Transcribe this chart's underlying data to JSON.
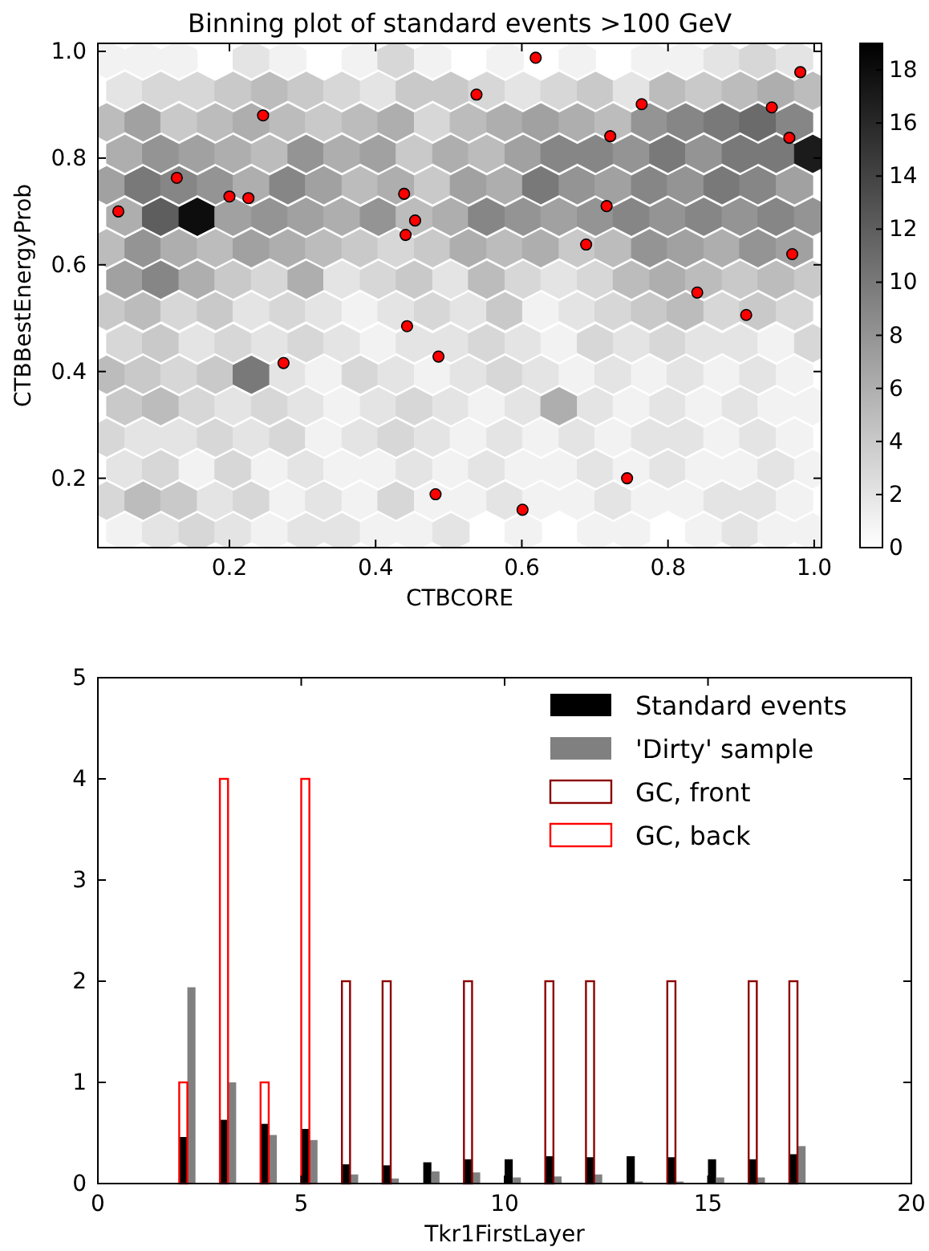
{
  "chart_data": [
    {
      "type": "scatter",
      "title": "Binning plot of standard events >100 GeV",
      "xlabel": "CTBCORE",
      "ylabel": "CTBBestEnergyProb",
      "xlim": [
        0.02,
        1.01
      ],
      "ylim": [
        0.07,
        1.015
      ],
      "xticks": [
        0.2,
        0.4,
        0.6,
        0.8,
        {
          "value": 1,
          "label": "1.0"
        }
      ],
      "yticks": [
        0.2,
        0.4,
        0.6,
        0.8,
        {
          "value": 1,
          "label": "1.0"
        }
      ],
      "clim": [
        0,
        19
      ],
      "cticks": [
        0,
        2,
        4,
        6,
        8,
        10,
        12,
        14,
        16,
        18
      ],
      "marker": "circle",
      "series": [
        {
          "x": [
            0.032,
            0.082,
            0.131,
            0.23,
            0.28,
            0.379,
            0.428,
            0.478,
            0.577,
            0.676,
            0.775,
            0.824,
            0.874,
            0.923,
            0.973
          ],
          "values": [
            0.985,
            0.985,
            0.985,
            0.985,
            0.985,
            0.985,
            0.985,
            0.985,
            0.985,
            0.985,
            0.985,
            0.985,
            0.985,
            0.985,
            0.985
          ],
          "cvalues": [
            1,
            1,
            1,
            2,
            1,
            1,
            3,
            1,
            1,
            1,
            1,
            1,
            2,
            3,
            2
          ],
          "colors": [
            "#f2f2f2",
            "#f2f2f2",
            "#f2f2f2",
            "#e4e4e4",
            "#f2f2f2",
            "#f2f2f2",
            "#d7d7d7",
            "#f2f2f2",
            "#f2f2f2",
            "#f2f2f2",
            "#f2f2f2",
            "#f2f2f2",
            "#e4e4e4",
            "#d7d7d7",
            "#e4e4e4"
          ]
        },
        {
          "x": [
            0.057,
            0.106,
            0.156,
            0.205,
            0.255,
            0.305,
            0.354,
            0.404,
            0.453,
            0.503,
            0.552,
            0.602,
            0.651,
            0.701,
            0.75,
            0.8,
            0.849,
            0.899,
            0.948,
            0.998
          ],
          "values": [
            0.926,
            0.926,
            0.926,
            0.926,
            0.926,
            0.926,
            0.926,
            0.926,
            0.926,
            0.926,
            0.926,
            0.926,
            0.926,
            0.926,
            0.926,
            0.926,
            0.926,
            0.926,
            0.926,
            0.926
          ],
          "cvalues": [
            2,
            3,
            3,
            4,
            5,
            4,
            3,
            2,
            4,
            4,
            3,
            2,
            3,
            4,
            2,
            5,
            4,
            5,
            6,
            5
          ],
          "colors": [
            "#e4e4e4",
            "#d7d7d7",
            "#d7d7d7",
            "#c9c9c9",
            "#bcbcbc",
            "#c9c9c9",
            "#d7d7d7",
            "#e4e4e4",
            "#c9c9c9",
            "#c9c9c9",
            "#d7d7d7",
            "#e4e4e4",
            "#d7d7d7",
            "#c9c9c9",
            "#e4e4e4",
            "#bcbcbc",
            "#c9c9c9",
            "#bcbcbc",
            "#aeaeae",
            "#bcbcbc"
          ]
        },
        {
          "x": [
            0.032,
            0.082,
            0.131,
            0.181,
            0.23,
            0.28,
            0.329,
            0.379,
            0.428,
            0.478,
            0.527,
            0.577,
            0.626,
            0.676,
            0.725,
            0.775,
            0.824,
            0.874,
            0.923,
            0.973
          ],
          "values": [
            0.867,
            0.867,
            0.867,
            0.867,
            0.867,
            0.867,
            0.867,
            0.867,
            0.867,
            0.867,
            0.867,
            0.867,
            0.867,
            0.867,
            0.867,
            0.867,
            0.867,
            0.867,
            0.867,
            0.867
          ],
          "cvalues": [
            5,
            7,
            4,
            5,
            6,
            5,
            4,
            5,
            6,
            3,
            5,
            6,
            7,
            6,
            5,
            8,
            9,
            10,
            11,
            9
          ],
          "colors": [
            "#bcbcbc",
            "#a1a1a1",
            "#c9c9c9",
            "#bcbcbc",
            "#aeaeae",
            "#bcbcbc",
            "#c9c9c9",
            "#bcbcbc",
            "#aeaeae",
            "#d7d7d7",
            "#bcbcbc",
            "#aeaeae",
            "#a1a1a1",
            "#aeaeae",
            "#bcbcbc",
            "#949494",
            "#868686",
            "#797979",
            "#6b6b6b",
            "#868686"
          ]
        },
        {
          "x": [
            0.057,
            0.106,
            0.156,
            0.205,
            0.255,
            0.305,
            0.354,
            0.404,
            0.453,
            0.503,
            0.552,
            0.602,
            0.651,
            0.701,
            0.75,
            0.8,
            0.849,
            0.899,
            0.948,
            0.998
          ],
          "values": [
            0.808,
            0.808,
            0.808,
            0.808,
            0.808,
            0.808,
            0.808,
            0.808,
            0.808,
            0.808,
            0.808,
            0.808,
            0.808,
            0.808,
            0.808,
            0.808,
            0.808,
            0.808,
            0.808,
            0.808
          ],
          "cvalues": [
            6,
            8,
            7,
            6,
            5,
            8,
            6,
            7,
            4,
            6,
            5,
            7,
            9,
            9,
            8,
            10,
            8,
            10,
            10,
            17
          ],
          "colors": [
            "#aeaeae",
            "#949494",
            "#a1a1a1",
            "#aeaeae",
            "#bcbcbc",
            "#949494",
            "#aeaeae",
            "#a1a1a1",
            "#c9c9c9",
            "#aeaeae",
            "#bcbcbc",
            "#a1a1a1",
            "#868686",
            "#868686",
            "#949494",
            "#797979",
            "#949494",
            "#797979",
            "#797979",
            "#1b1b1b"
          ]
        },
        {
          "x": [
            0.032,
            0.082,
            0.131,
            0.181,
            0.23,
            0.28,
            0.329,
            0.379,
            0.428,
            0.478,
            0.527,
            0.577,
            0.626,
            0.676,
            0.725,
            0.775,
            0.824,
            0.874,
            0.923,
            0.973
          ],
          "values": [
            0.749,
            0.749,
            0.749,
            0.749,
            0.749,
            0.749,
            0.749,
            0.749,
            0.749,
            0.749,
            0.749,
            0.749,
            0.749,
            0.749,
            0.749,
            0.749,
            0.749,
            0.749,
            0.749,
            0.749
          ],
          "cvalues": [
            7,
            10,
            9,
            8,
            6,
            9,
            7,
            5,
            6,
            4,
            7,
            6,
            10,
            8,
            7,
            9,
            8,
            10,
            9,
            7
          ],
          "colors": [
            "#a1a1a1",
            "#797979",
            "#868686",
            "#949494",
            "#aeaeae",
            "#868686",
            "#a1a1a1",
            "#bcbcbc",
            "#aeaeae",
            "#c9c9c9",
            "#a1a1a1",
            "#aeaeae",
            "#797979",
            "#949494",
            "#a1a1a1",
            "#868686",
            "#949494",
            "#797979",
            "#868686",
            "#a1a1a1"
          ]
        },
        {
          "x": [
            0.057,
            0.106,
            0.156,
            0.205,
            0.255,
            0.305,
            0.354,
            0.404,
            0.453,
            0.503,
            0.552,
            0.602,
            0.651,
            0.701,
            0.75,
            0.8,
            0.849,
            0.899,
            0.948,
            0.998
          ],
          "values": [
            0.69,
            0.69,
            0.69,
            0.69,
            0.69,
            0.69,
            0.69,
            0.69,
            0.69,
            0.69,
            0.69,
            0.69,
            0.69,
            0.69,
            0.69,
            0.69,
            0.69,
            0.69,
            0.69,
            0.69
          ],
          "cvalues": [
            6,
            12,
            18,
            7,
            8,
            7,
            6,
            8,
            5,
            6,
            9,
            8,
            7,
            8,
            9,
            8,
            9,
            8,
            9,
            8
          ],
          "colors": [
            "#aeaeae",
            "#5e5e5e",
            "#0d0d0d",
            "#a1a1a1",
            "#949494",
            "#a1a1a1",
            "#aeaeae",
            "#949494",
            "#bcbcbc",
            "#aeaeae",
            "#868686",
            "#949494",
            "#a1a1a1",
            "#949494",
            "#868686",
            "#949494",
            "#868686",
            "#949494",
            "#868686",
            "#949494"
          ]
        },
        {
          "x": [
            0.032,
            0.082,
            0.131,
            0.181,
            0.23,
            0.28,
            0.329,
            0.379,
            0.428,
            0.478,
            0.527,
            0.577,
            0.626,
            0.676,
            0.725,
            0.775,
            0.824,
            0.874,
            0.923,
            0.973
          ],
          "values": [
            0.631,
            0.631,
            0.631,
            0.631,
            0.631,
            0.631,
            0.631,
            0.631,
            0.631,
            0.631,
            0.631,
            0.631,
            0.631,
            0.631,
            0.631,
            0.631,
            0.631,
            0.631,
            0.631,
            0.631
          ],
          "cvalues": [
            5,
            8,
            6,
            5,
            7,
            6,
            5,
            4,
            3,
            4,
            6,
            5,
            6,
            4,
            5,
            8,
            7,
            6,
            8,
            7
          ],
          "colors": [
            "#bcbcbc",
            "#949494",
            "#aeaeae",
            "#bcbcbc",
            "#a1a1a1",
            "#aeaeae",
            "#bcbcbc",
            "#c9c9c9",
            "#d7d7d7",
            "#c9c9c9",
            "#aeaeae",
            "#bcbcbc",
            "#aeaeae",
            "#c9c9c9",
            "#bcbcbc",
            "#949494",
            "#a1a1a1",
            "#aeaeae",
            "#949494",
            "#a1a1a1"
          ]
        },
        {
          "x": [
            0.057,
            0.106,
            0.156,
            0.205,
            0.255,
            0.305,
            0.354,
            0.404,
            0.453,
            0.503,
            0.552,
            0.602,
            0.651,
            0.701,
            0.75,
            0.8,
            0.849,
            0.899,
            0.948,
            0.998
          ],
          "values": [
            0.572,
            0.572,
            0.572,
            0.572,
            0.572,
            0.572,
            0.572,
            0.572,
            0.572,
            0.572,
            0.572,
            0.572,
            0.572,
            0.572,
            0.572,
            0.572,
            0.572,
            0.572,
            0.572,
            0.572
          ],
          "cvalues": [
            7,
            9,
            6,
            4,
            3,
            6,
            2,
            3,
            4,
            2,
            5,
            3,
            2,
            3,
            5,
            6,
            5,
            4,
            5,
            4
          ],
          "colors": [
            "#a1a1a1",
            "#868686",
            "#aeaeae",
            "#c9c9c9",
            "#d7d7d7",
            "#aeaeae",
            "#e4e4e4",
            "#d7d7d7",
            "#c9c9c9",
            "#e4e4e4",
            "#bcbcbc",
            "#d7d7d7",
            "#e4e4e4",
            "#d7d7d7",
            "#bcbcbc",
            "#aeaeae",
            "#bcbcbc",
            "#c9c9c9",
            "#bcbcbc",
            "#c9c9c9"
          ]
        },
        {
          "x": [
            0.032,
            0.082,
            0.131,
            0.181,
            0.23,
            0.28,
            0.329,
            0.379,
            0.428,
            0.478,
            0.527,
            0.577,
            0.626,
            0.676,
            0.725,
            0.775,
            0.824,
            0.874,
            0.923,
            0.973
          ],
          "values": [
            0.513,
            0.513,
            0.513,
            0.513,
            0.513,
            0.513,
            0.513,
            0.513,
            0.513,
            0.513,
            0.513,
            0.513,
            0.513,
            0.513,
            0.513,
            0.513,
            0.513,
            0.513,
            0.513,
            0.513
          ],
          "cvalues": [
            4,
            5,
            3,
            4,
            2,
            3,
            2,
            1,
            2,
            3,
            2,
            4,
            1,
            2,
            3,
            4,
            5,
            3,
            4,
            3
          ],
          "colors": [
            "#c9c9c9",
            "#bcbcbc",
            "#d7d7d7",
            "#c9c9c9",
            "#e4e4e4",
            "#d7d7d7",
            "#e4e4e4",
            "#f2f2f2",
            "#e4e4e4",
            "#d7d7d7",
            "#e4e4e4",
            "#c9c9c9",
            "#f2f2f2",
            "#e4e4e4",
            "#d7d7d7",
            "#c9c9c9",
            "#bcbcbc",
            "#d7d7d7",
            "#c9c9c9",
            "#d7d7d7"
          ]
        },
        {
          "x": [
            0.057,
            0.106,
            0.156,
            0.205,
            0.255,
            0.305,
            0.354,
            0.404,
            0.453,
            0.503,
            0.552,
            0.602,
            0.651,
            0.701,
            0.75,
            0.8,
            0.849,
            0.899,
            0.948,
            0.998
          ],
          "values": [
            0.453,
            0.453,
            0.453,
            0.453,
            0.453,
            0.453,
            0.453,
            0.453,
            0.453,
            0.453,
            0.453,
            0.453,
            0.453,
            0.453,
            0.453,
            0.453,
            0.453,
            0.453,
            0.453,
            0.453
          ],
          "cvalues": [
            3,
            4,
            2,
            3,
            2,
            3,
            2,
            1,
            2,
            2,
            3,
            2,
            1,
            3,
            2,
            3,
            2,
            2,
            1,
            3
          ],
          "colors": [
            "#d7d7d7",
            "#c9c9c9",
            "#e4e4e4",
            "#d7d7d7",
            "#e4e4e4",
            "#d7d7d7",
            "#e4e4e4",
            "#f2f2f2",
            "#e4e4e4",
            "#e4e4e4",
            "#d7d7d7",
            "#e4e4e4",
            "#f2f2f2",
            "#d7d7d7",
            "#e4e4e4",
            "#d7d7d7",
            "#e4e4e4",
            "#e4e4e4",
            "#f2f2f2",
            "#d7d7d7"
          ]
        },
        {
          "x": [
            0.032,
            0.082,
            0.131,
            0.181,
            0.23,
            0.28,
            0.329,
            0.379,
            0.428,
            0.478,
            0.527,
            0.577,
            0.626,
            0.676,
            0.725,
            0.775,
            0.824,
            0.874,
            0.923,
            0.973
          ],
          "values": [
            0.394,
            0.394,
            0.394,
            0.394,
            0.394,
            0.394,
            0.394,
            0.394,
            0.394,
            0.394,
            0.394,
            0.394,
            0.394,
            0.394,
            0.394,
            0.394,
            0.394,
            0.394,
            0.394,
            0.394
          ],
          "cvalues": [
            5,
            4,
            3,
            4,
            10,
            2,
            1,
            3,
            2,
            1,
            2,
            3,
            2,
            1,
            2,
            1,
            2,
            1,
            2,
            1
          ],
          "colors": [
            "#bcbcbc",
            "#c9c9c9",
            "#d7d7d7",
            "#c9c9c9",
            "#797979",
            "#e4e4e4",
            "#f2f2f2",
            "#d7d7d7",
            "#e4e4e4",
            "#f2f2f2",
            "#e4e4e4",
            "#d7d7d7",
            "#e4e4e4",
            "#f2f2f2",
            "#e4e4e4",
            "#f2f2f2",
            "#e4e4e4",
            "#f2f2f2",
            "#e4e4e4",
            "#f2f2f2"
          ]
        },
        {
          "x": [
            0.057,
            0.106,
            0.156,
            0.205,
            0.255,
            0.305,
            0.354,
            0.404,
            0.453,
            0.503,
            0.552,
            0.602,
            0.651,
            0.701,
            0.75,
            0.8,
            0.849,
            0.899,
            0.948,
            0.998
          ],
          "values": [
            0.335,
            0.335,
            0.335,
            0.335,
            0.335,
            0.335,
            0.335,
            0.335,
            0.335,
            0.335,
            0.335,
            0.335,
            0.335,
            0.335,
            0.335,
            0.335,
            0.335,
            0.335,
            0.335,
            0.335
          ],
          "cvalues": [
            4,
            5,
            3,
            2,
            3,
            2,
            1,
            2,
            3,
            2,
            1,
            2,
            6,
            2,
            1,
            2,
            1,
            2,
            1,
            1
          ],
          "colors": [
            "#c9c9c9",
            "#bcbcbc",
            "#d7d7d7",
            "#e4e4e4",
            "#d7d7d7",
            "#e4e4e4",
            "#f2f2f2",
            "#e4e4e4",
            "#d7d7d7",
            "#e4e4e4",
            "#f2f2f2",
            "#e4e4e4",
            "#aeaeae",
            "#e4e4e4",
            "#f2f2f2",
            "#e4e4e4",
            "#f2f2f2",
            "#e4e4e4",
            "#f2f2f2",
            "#f2f2f2"
          ]
        },
        {
          "x": [
            0.032,
            0.082,
            0.131,
            0.181,
            0.23,
            0.28,
            0.329,
            0.379,
            0.428,
            0.478,
            0.527,
            0.577,
            0.626,
            0.676,
            0.725,
            0.775,
            0.824,
            0.874,
            0.923,
            0.973
          ],
          "values": [
            0.276,
            0.276,
            0.276,
            0.276,
            0.276,
            0.276,
            0.276,
            0.276,
            0.276,
            0.276,
            0.276,
            0.276,
            0.276,
            0.276,
            0.276,
            0.276,
            0.276,
            0.276,
            0.276,
            0.276
          ],
          "cvalues": [
            3,
            2,
            2,
            3,
            2,
            3,
            1,
            2,
            3,
            2,
            1,
            2,
            1,
            2,
            1,
            2,
            2,
            1,
            2,
            1
          ],
          "colors": [
            "#d7d7d7",
            "#e4e4e4",
            "#e4e4e4",
            "#d7d7d7",
            "#e4e4e4",
            "#d7d7d7",
            "#f2f2f2",
            "#e4e4e4",
            "#d7d7d7",
            "#e4e4e4",
            "#f2f2f2",
            "#e4e4e4",
            "#f2f2f2",
            "#e4e4e4",
            "#f2f2f2",
            "#e4e4e4",
            "#e4e4e4",
            "#f2f2f2",
            "#e4e4e4",
            "#f2f2f2"
          ]
        },
        {
          "x": [
            0.057,
            0.106,
            0.156,
            0.205,
            0.255,
            0.305,
            0.354,
            0.404,
            0.453,
            0.503,
            0.552,
            0.602,
            0.651,
            0.701,
            0.75,
            0.8,
            0.849,
            0.899,
            0.948,
            0.998
          ],
          "values": [
            0.217,
            0.217,
            0.217,
            0.217,
            0.217,
            0.217,
            0.217,
            0.217,
            0.217,
            0.217,
            0.217,
            0.217,
            0.217,
            0.217,
            0.217,
            0.217,
            0.217,
            0.217,
            0.217,
            0.217
          ],
          "cvalues": [
            2,
            3,
            1,
            3,
            1,
            2,
            1,
            1,
            2,
            1,
            2,
            1,
            1,
            2,
            1,
            2,
            1,
            1,
            2,
            1
          ],
          "colors": [
            "#e4e4e4",
            "#d7d7d7",
            "#f2f2f2",
            "#d7d7d7",
            "#f2f2f2",
            "#e4e4e4",
            "#f2f2f2",
            "#f2f2f2",
            "#e4e4e4",
            "#f2f2f2",
            "#e4e4e4",
            "#f2f2f2",
            "#f2f2f2",
            "#e4e4e4",
            "#f2f2f2",
            "#e4e4e4",
            "#f2f2f2",
            "#f2f2f2",
            "#e4e4e4",
            "#f2f2f2"
          ]
        },
        {
          "x": [
            0.032,
            0.082,
            0.131,
            0.181,
            0.23,
            0.28,
            0.329,
            0.379,
            0.428,
            0.478,
            0.527,
            0.577,
            0.626,
            0.676,
            0.725,
            0.775,
            0.824,
            0.874,
            0.923,
            0.973
          ],
          "values": [
            0.158,
            0.158,
            0.158,
            0.158,
            0.158,
            0.158,
            0.158,
            0.158,
            0.158,
            0.158,
            0.158,
            0.158,
            0.158,
            0.158,
            0.158,
            0.158,
            0.158,
            0.158,
            0.158,
            0.158
          ],
          "cvalues": [
            3,
            5,
            4,
            2,
            3,
            1,
            2,
            1,
            3,
            1,
            1,
            2,
            1,
            1,
            2,
            1,
            1,
            2,
            2,
            1
          ],
          "colors": [
            "#d7d7d7",
            "#bcbcbc",
            "#c9c9c9",
            "#e4e4e4",
            "#d7d7d7",
            "#f2f2f2",
            "#e4e4e4",
            "#f2f2f2",
            "#d7d7d7",
            "#f2f2f2",
            "#f2f2f2",
            "#e4e4e4",
            "#f2f2f2",
            "#f2f2f2",
            "#e4e4e4",
            "#f2f2f2",
            "#f2f2f2",
            "#e4e4e4",
            "#e4e4e4",
            "#f2f2f2"
          ]
        },
        {
          "x": [
            0.057,
            0.106,
            0.156,
            0.205,
            0.255,
            0.305,
            0.354,
            0.404,
            0.453,
            0.503,
            0.602,
            0.701,
            0.75,
            0.849,
            0.899,
            0.948,
            0.998
          ],
          "values": [
            0.099,
            0.099,
            0.099,
            0.099,
            0.099,
            0.099,
            0.099,
            0.099,
            0.099,
            0.099,
            0.099,
            0.099,
            0.099,
            0.099,
            0.099,
            0.099,
            0.099
          ],
          "cvalues": [
            1,
            2,
            3,
            2,
            1,
            2,
            2,
            1,
            1,
            2,
            1,
            1,
            1,
            1,
            2,
            1,
            1
          ],
          "colors": [
            "#f2f2f2",
            "#e4e4e4",
            "#d7d7d7",
            "#e4e4e4",
            "#f2f2f2",
            "#e4e4e4",
            "#e4e4e4",
            "#f2f2f2",
            "#f2f2f2",
            "#e4e4e4",
            "#f2f2f2",
            "#f2f2f2",
            "#f2f2f2",
            "#f2f2f2",
            "#e4e4e4",
            "#f2f2f2",
            "#f2f2f2"
          ]
        },
        {
          "color": "#ff0000",
          "x": [
            0.048,
            0.128,
            0.2,
            0.226,
            0.246,
            0.274,
            0.439,
            0.454,
            0.441,
            0.443,
            0.486,
            0.482,
            0.619,
            0.538,
            0.764,
            0.721,
            0.942,
            0.981,
            0.966,
            0.716,
            0.688,
            0.97,
            0.84,
            0.907,
            0.744,
            0.601
          ],
          "values": [
            0.7,
            0.763,
            0.728,
            0.725,
            0.88,
            0.416,
            0.733,
            0.683,
            0.656,
            0.485,
            0.428,
            0.17,
            0.988,
            0.919,
            0.901,
            0.841,
            0.895,
            0.961,
            0.838,
            0.71,
            0.638,
            0.62,
            0.548,
            0.506,
            0.2,
            0.141
          ]
        }
      ]
    },
    {
      "type": "bar",
      "xlabel": "Tkr1FirstLayer",
      "xlim": [
        0,
        20
      ],
      "ylim": [
        0,
        5
      ],
      "xticks": [
        0,
        5,
        10,
        15,
        20
      ],
      "yticks": [
        0,
        1,
        2,
        3,
        4,
        5
      ],
      "legend": "top right",
      "series": [
        {
          "name": "Standard events",
          "color": "#000000",
          "x": [
            2.1,
            3.1,
            4.1,
            5.1,
            6.1,
            7.1,
            8.1,
            9.1,
            10.1,
            11.1,
            12.1,
            13.1,
            14.1,
            15.1,
            16.1,
            17.1
          ],
          "values": [
            0.46,
            0.63,
            0.59,
            0.54,
            0.19,
            0.18,
            0.21,
            0.24,
            0.24,
            0.27,
            0.26,
            0.27,
            0.26,
            0.24,
            0.24,
            0.29
          ]
        },
        {
          "name": "'Dirty' sample",
          "color": "#808080",
          "x": [
            2.3,
            3.3,
            4.3,
            5.3,
            6.3,
            7.3,
            8.3,
            9.3,
            10.3,
            11.3,
            12.3,
            13.3,
            14.3,
            15.3,
            16.3,
            17.3
          ],
          "values": [
            1.94,
            1.0,
            0.48,
            0.43,
            0.09,
            0.05,
            0.12,
            0.11,
            0.06,
            0.07,
            0.09,
            0.02,
            0.02,
            0.06,
            0.06,
            0.37
          ]
        },
        {
          "name": "GC, front",
          "color": "#8b0000",
          "x": [
            6.1,
            7.1,
            9.1,
            11.1,
            12.1,
            14.1,
            16.1,
            17.1
          ],
          "values": [
            2,
            2,
            2,
            2,
            2,
            2,
            2,
            2
          ]
        },
        {
          "name": "GC, back",
          "color": "#ff0000",
          "x": [
            2.1,
            3.1,
            4.1,
            5.1
          ],
          "values": [
            1,
            4,
            1,
            4
          ]
        }
      ]
    }
  ]
}
